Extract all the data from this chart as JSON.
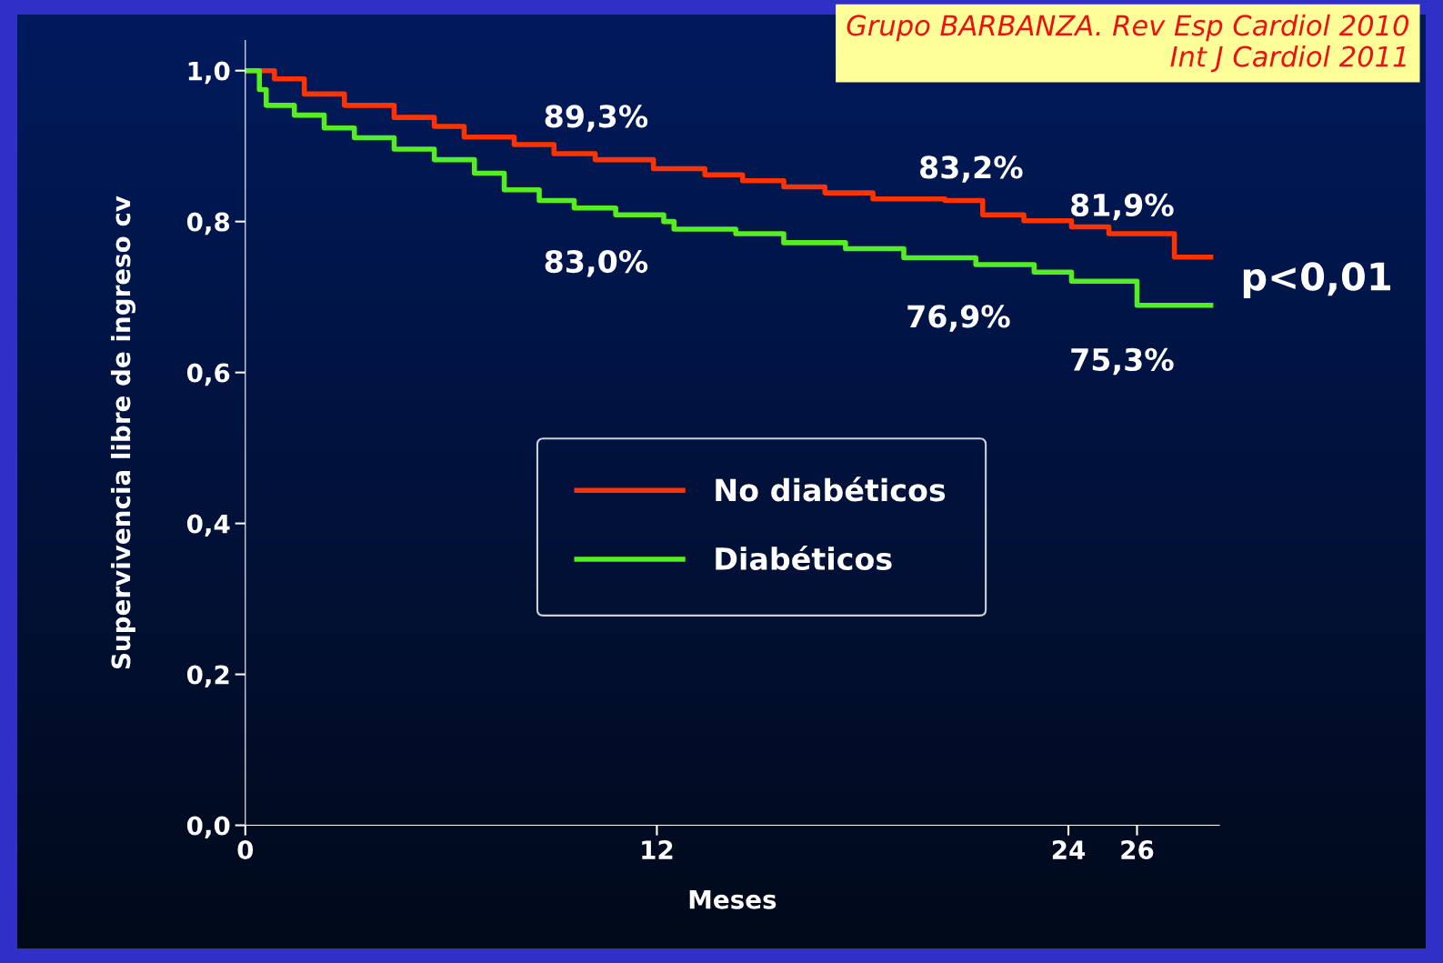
{
  "chart_data": {
    "type": "step",
    "xlabel": "Meses",
    "ylabel": "Supervivencia libre de ingreso cv",
    "xlim": [
      0,
      28.4
    ],
    "ylim": [
      0,
      1.04
    ],
    "xticks": [
      0,
      12,
      24,
      26
    ],
    "yticks": [
      {
        "value": 0,
        "label": "0,0"
      },
      {
        "value": 0.2,
        "label": "0,2"
      },
      {
        "value": 0.4,
        "label": "0,4"
      },
      {
        "value": 0.6,
        "label": "0,6"
      },
      {
        "value": 0.8,
        "label": "0,8"
      },
      {
        "value": 1.0,
        "label": "1,0"
      }
    ],
    "grid": false,
    "legend": "center",
    "line_style": "solid",
    "series": [
      {
        "name": "No diabéticos",
        "color": "#ff3300",
        "x": [
          0,
          0.85,
          1.72,
          2.89,
          4.34,
          5.51,
          6.38,
          7.84,
          9.0,
          10.2,
          11.9,
          13.4,
          14.5,
          15.7,
          16.9,
          18.3,
          20.4,
          21.5,
          22.7,
          24.09,
          25.18,
          27.09,
          28.15
        ],
        "values": [
          1.0,
          0.989,
          0.969,
          0.954,
          0.938,
          0.926,
          0.912,
          0.902,
          0.89,
          0.882,
          0.87,
          0.862,
          0.854,
          0.846,
          0.838,
          0.83,
          0.828,
          0.809,
          0.801,
          0.793,
          0.784,
          0.753,
          0.753
        ]
      },
      {
        "name": "Diabéticos",
        "color": "#55ee22",
        "x": [
          0,
          0.41,
          0.61,
          1.43,
          2.3,
          3.18,
          4.34,
          5.51,
          6.68,
          7.55,
          8.57,
          9.59,
          10.8,
          12.2,
          12.5,
          14.3,
          15.7,
          17.5,
          19.2,
          21.3,
          23.0,
          24.09,
          26.0,
          28.15
        ],
        "values": [
          1.0,
          0.975,
          0.954,
          0.941,
          0.924,
          0.911,
          0.896,
          0.882,
          0.864,
          0.842,
          0.828,
          0.818,
          0.809,
          0.8,
          0.79,
          0.784,
          0.772,
          0.764,
          0.752,
          0.743,
          0.733,
          0.721,
          0.689,
          0.689
        ]
      }
    ],
    "annotations": [
      "89,3%",
      "83,2%",
      "81,9%",
      "83,0%",
      "76,9%",
      "75,3%",
      "p<0,01",
      "Grupo BARBANZA. Rev Esp Cardiol 2010\nInt J Cardiol 2011"
    ]
  }
}
